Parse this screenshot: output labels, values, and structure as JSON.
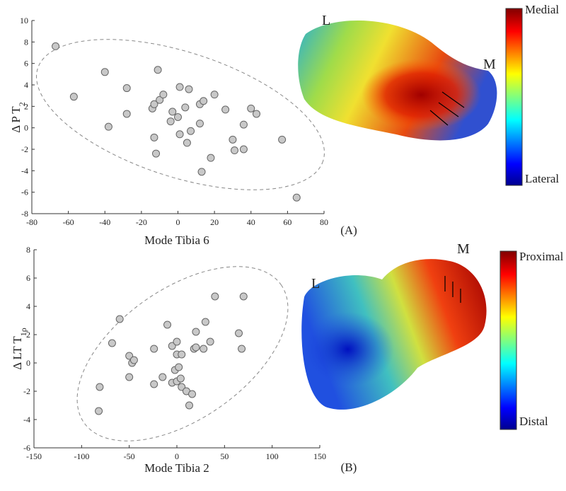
{
  "chart_data": [
    {
      "type": "scatter",
      "panel_label": "(A)",
      "x_label": "Mode Tibia 6",
      "y_label": "Δ P T",
      "y_label_sub": "2",
      "xlim": [
        -80,
        80
      ],
      "xticks": [
        -80,
        -60,
        -40,
        -20,
        0,
        20,
        40,
        60,
        80
      ],
      "ylim": [
        -8,
        10
      ],
      "yticks": [
        -8,
        -6,
        -4,
        -2,
        0,
        2,
        4,
        6,
        8,
        10
      ],
      "color": "#c8c8c8",
      "x": [
        -67,
        -57,
        -40,
        -38,
        -28,
        -28,
        -14,
        -13,
        -11,
        -10,
        -8,
        -13,
        -12,
        -4,
        -3,
        0,
        1,
        6,
        1,
        4,
        5,
        7,
        12,
        14,
        12,
        20,
        13,
        18,
        26,
        30,
        31,
        36,
        36,
        40,
        43,
        57,
        65
      ],
      "values": [
        7.6,
        2.9,
        5.2,
        0.1,
        3.7,
        1.3,
        1.8,
        2.2,
        5.4,
        2.6,
        3.1,
        -0.9,
        -2.4,
        0.6,
        1.5,
        1.0,
        3.8,
        3.6,
        -0.6,
        1.9,
        -1.4,
        -0.3,
        2.2,
        2.5,
        0.4,
        3.1,
        -4.1,
        -2.8,
        1.7,
        -1.1,
        -2.1,
        -2.0,
        0.3,
        1.8,
        1.3,
        -1.1,
        -6.5
      ],
      "surface_labels": [
        "L",
        "M"
      ],
      "colorbar_labels": [
        "Medial",
        "Lateral"
      ]
    },
    {
      "type": "scatter",
      "panel_label": "(B)",
      "x_label": "Mode Tibia 2",
      "y_label": "Δ LT T",
      "y_label_sub": "1ρ",
      "xlim": [
        -150,
        150
      ],
      "xticks": [
        -150,
        -100,
        -50,
        0,
        50,
        100,
        150
      ],
      "ylim": [
        -6,
        8
      ],
      "yticks": [
        -6,
        -4,
        -2,
        0,
        2,
        4,
        6,
        8
      ],
      "color": "#c8c8c8",
      "x": [
        -60,
        -68,
        -81,
        -82,
        -50,
        -47,
        -45,
        -50,
        -10,
        -24,
        -24,
        -15,
        -5,
        0,
        0,
        -2,
        2,
        5,
        -5,
        0,
        4,
        5,
        10,
        16,
        13,
        18,
        20,
        20,
        30,
        40,
        35,
        28,
        65,
        70,
        68
      ],
      "values": [
        3.1,
        1.4,
        -1.7,
        -3.4,
        0.5,
        0,
        0.2,
        -1,
        2.7,
        1,
        -1.5,
        -1,
        1.2,
        1.5,
        0.6,
        -0.5,
        -0.3,
        0.6,
        -1.4,
        -1.3,
        -1.1,
        -1.7,
        -2,
        -2.2,
        -3,
        1,
        1.1,
        2.2,
        2.9,
        4.7,
        1.5,
        1,
        2.1,
        4.7,
        1
      ],
      "surface_labels": [
        "M",
        "L"
      ],
      "colorbar_labels": [
        "Proximal",
        "Distal"
      ]
    }
  ]
}
